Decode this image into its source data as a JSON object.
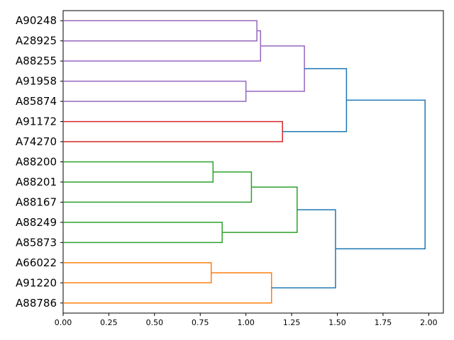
{
  "chart_data": {
    "type": "dendrogram",
    "orientation": "left",
    "title": "",
    "xlabel": "",
    "ylabel": "",
    "xlim": [
      0,
      2.08
    ],
    "x_ticks": [
      0.0,
      0.25,
      0.5,
      0.75,
      1.0,
      1.25,
      1.5,
      1.75,
      2.0
    ],
    "x_tick_labels": [
      "0.00",
      "0.25",
      "0.50",
      "0.75",
      "1.00",
      "1.25",
      "1.50",
      "1.75",
      "2.00"
    ],
    "grid": false,
    "leaves": [
      "A90248",
      "A28925",
      "A88255",
      "A91958",
      "A85874",
      "A91172",
      "A74270",
      "A88200",
      "A88201",
      "A88167",
      "A88249",
      "A85873",
      "A66022",
      "A91220",
      "A88786"
    ],
    "colors": {
      "purple": "#9467bd",
      "red": "#d62728",
      "green": "#2ca02c",
      "orange": "#ff7f0e",
      "blue": "#1f77b4"
    },
    "merges": [
      {
        "left": "A90248",
        "right": "A28925",
        "height": 1.06,
        "color": "purple"
      },
      {
        "left": "m1",
        "right": "A88255",
        "height": 1.08,
        "color": "purple"
      },
      {
        "left": "A91958",
        "right": "A85874",
        "height": 1.0,
        "color": "purple"
      },
      {
        "left": "m2",
        "right": "m3",
        "height": 1.32,
        "color": "purple"
      },
      {
        "left": "A91172",
        "right": "A74270",
        "height": 1.2,
        "color": "red"
      },
      {
        "left": "m4",
        "right": "m5",
        "height": 1.55,
        "color": "blue"
      },
      {
        "left": "A88200",
        "right": "A88201",
        "height": 0.82,
        "color": "green"
      },
      {
        "left": "m7",
        "right": "A88167",
        "height": 1.03,
        "color": "green"
      },
      {
        "left": "A88249",
        "right": "A85873",
        "height": 0.87,
        "color": "green"
      },
      {
        "left": "m8",
        "right": "m9",
        "height": 1.28,
        "color": "green"
      },
      {
        "left": "A66022",
        "right": "A91220",
        "height": 0.81,
        "color": "orange"
      },
      {
        "left": "m11",
        "right": "A88786",
        "height": 1.14,
        "color": "orange"
      },
      {
        "left": "m10",
        "right": "m12",
        "height": 1.49,
        "color": "blue"
      },
      {
        "left": "m6",
        "right": "m13",
        "height": 1.98,
        "color": "blue"
      }
    ]
  }
}
